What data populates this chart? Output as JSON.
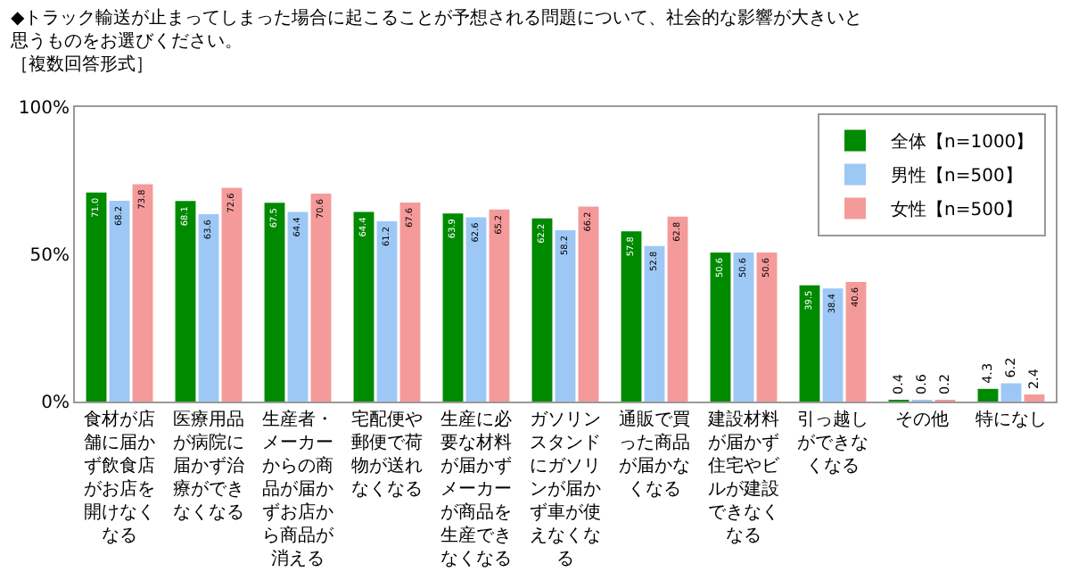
{
  "chart_data": {
    "type": "bar",
    "title": "◆トラック輸送が止まってしまった場合に起こることが予想される問題について、社会的な影響が大きいと思うものをお選びください。",
    "subtitle": "［複数回答形式］",
    "categories": [
      "食材が店舗に届かず飲食店がお店を開けなくなる",
      "医療用品が病院に届かず治療ができなくなる",
      "生産者・メーカーからの商品が届かずお店から商品が消える",
      "宅配便や郵便で荷物が送れなくなる",
      "生産に必要な材料が届かずメーカーが商品を生産できなくなる",
      "ガソリンスタンドにガソリンが届かず車が使えなくなる",
      "通販で買った商品が届かなくなる",
      "建設材料が届かず住宅やビルが建設できなくなる",
      "引っ越しができなくなる",
      "その他",
      "特になし"
    ],
    "series": [
      {
        "name": "全体【n=1000】",
        "color": "#008a00",
        "values": [
          71.0,
          68.1,
          67.5,
          64.4,
          63.9,
          62.2,
          57.8,
          50.6,
          39.5,
          0.4,
          4.3
        ],
        "value_labels": [
          "71.0",
          "68.1",
          "67.5",
          "64.4",
          "63.9",
          "62.2",
          "57.8",
          "50.6",
          "39.5",
          "0.4",
          "4.3"
        ]
      },
      {
        "name": "男性【n=500】",
        "color": "#9dc8f5",
        "values": [
          68.2,
          63.6,
          64.4,
          61.2,
          62.6,
          58.2,
          52.8,
          50.6,
          38.4,
          0.6,
          6.2
        ],
        "value_labels": [
          "68.2",
          "63.6",
          "64.4",
          "61.2",
          "62.6",
          "58.2",
          "52.8",
          "50.6",
          "38.4",
          "0.6",
          "6.2"
        ]
      },
      {
        "name": "女性【n=500】",
        "color": "#f59a9a",
        "values": [
          73.8,
          72.6,
          70.6,
          67.6,
          65.2,
          66.2,
          62.8,
          50.6,
          40.6,
          0.2,
          2.4
        ],
        "value_labels": [
          "73.8",
          "72.6",
          "70.6",
          "67.6",
          "65.2",
          "66.2",
          "62.8",
          "50.6",
          "40.6",
          "0.2",
          "2.4"
        ]
      }
    ],
    "ylim": [
      0,
      100
    ],
    "yticks": [
      {
        "value": 0,
        "label": "0%"
      },
      {
        "value": 50,
        "label": "50%"
      },
      {
        "value": 100,
        "label": "100%"
      }
    ],
    "legend": "top right"
  }
}
